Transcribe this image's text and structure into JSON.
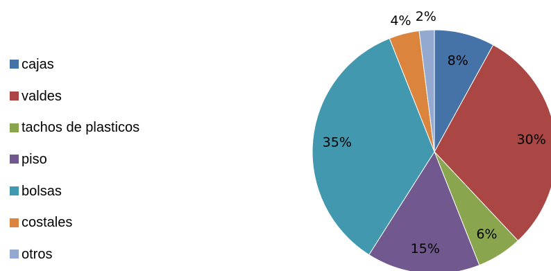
{
  "chart_data": {
    "type": "pie",
    "title": "",
    "categories": [
      "cajas",
      "valdes",
      "tachos de plasticos",
      "piso",
      "bolsas",
      "costales",
      "otros"
    ],
    "values": [
      8,
      30,
      6,
      15,
      35,
      4,
      2
    ],
    "data_labels": [
      "8%",
      "30%",
      "6%",
      "15%",
      "35%",
      "4%",
      "2%"
    ],
    "colors": [
      "#4572a7",
      "#aa4643",
      "#89a54e",
      "#71588f",
      "#4198af",
      "#db843d",
      "#93a9cf"
    ],
    "legend_position": "left",
    "start_angle": "12 o'clock",
    "direction": "clockwise"
  }
}
